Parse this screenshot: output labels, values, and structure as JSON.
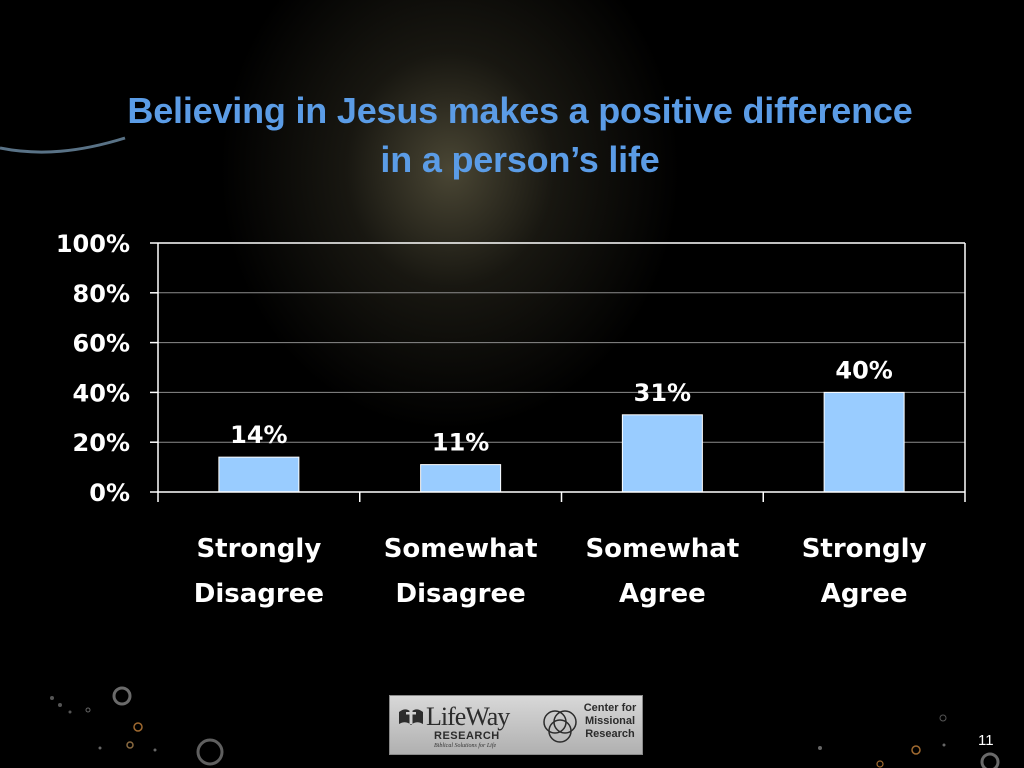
{
  "title": {
    "line1": "Believing in Jesus makes a positive difference",
    "line2": "in a person’s life"
  },
  "chart_data": {
    "type": "bar",
    "title": "Believing in Jesus makes a positive difference in a person’s life",
    "categories": [
      [
        "Strongly",
        "Disagree"
      ],
      [
        "Somewhat",
        "Disagree"
      ],
      [
        "Somewhat",
        "Agree"
      ],
      [
        "Strongly",
        "Agree"
      ]
    ],
    "values": [
      14,
      11,
      31,
      40
    ],
    "value_labels": [
      "14%",
      "11%",
      "31%",
      "40%"
    ],
    "y_ticks": [
      0,
      20,
      40,
      60,
      80,
      100
    ],
    "y_tick_labels": [
      "0%",
      "20%",
      "40%",
      "60%",
      "80%",
      "100%"
    ],
    "ylim": [
      0,
      100
    ],
    "grid": true,
    "legend": "none",
    "colors": {
      "bar": "#99ccff",
      "bar_border": "#ffffff",
      "grid": "#8c8c8c",
      "axis": "#ffffff"
    }
  },
  "logos": {
    "lifeway_name": "LifeWay",
    "lifeway_sub": "RESEARCH",
    "lifeway_tagline": "Biblical Solutions for Life",
    "cmr_lines": [
      "Center for",
      "Missional",
      "Research"
    ]
  },
  "slide_number": "11",
  "colors": {
    "title": "#5b9ce6",
    "background": "#000000"
  }
}
